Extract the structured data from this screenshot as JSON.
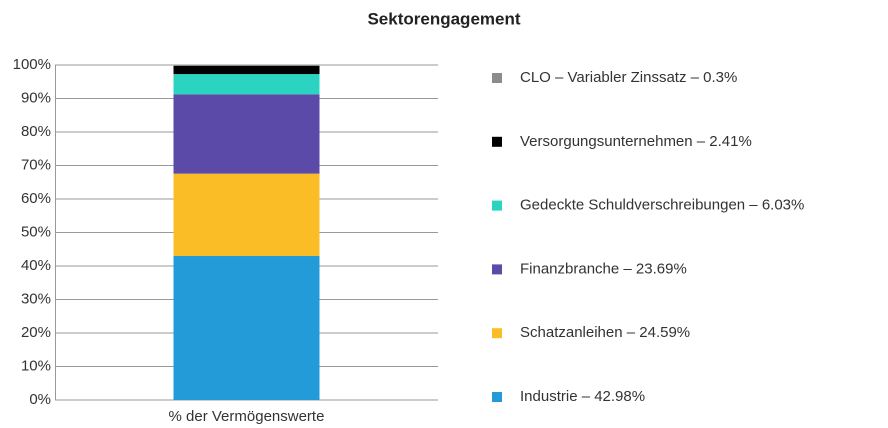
{
  "chart_data": {
    "type": "stacked_bar",
    "title": "Sektorengagement",
    "categories": [
      "% der Vermögenswerte"
    ],
    "series": [
      {
        "name": "Industrie – 42.98%",
        "color": "#229bd8",
        "values": [
          42.98
        ]
      },
      {
        "name": "Schatzanleihen – 24.59%",
        "color": "#fbbd26",
        "values": [
          24.59
        ]
      },
      {
        "name": "Finanzbranche – 23.69%",
        "color": "#5b4aa8",
        "values": [
          23.69
        ]
      },
      {
        "name": "Gedeckte Schuldverschreibungen – 6.03%",
        "color": "#2ad4c0",
        "values": [
          6.03
        ]
      },
      {
        "name": "Versorgungsunternehmen – 2.41%",
        "color": "#000000",
        "values": [
          2.41
        ]
      },
      {
        "name": "CLO – Variabler Zinssatz – 0.3%",
        "color": "#8c8c8c",
        "values": [
          0.3
        ]
      }
    ],
    "ylim": [
      0,
      100
    ],
    "yticks": [
      {
        "value": 0,
        "label": "0%"
      },
      {
        "value": 10,
        "label": "10%"
      },
      {
        "value": 20,
        "label": "20%"
      },
      {
        "value": 30,
        "label": "30%"
      },
      {
        "value": 40,
        "label": "40%"
      },
      {
        "value": 50,
        "label": "50%"
      },
      {
        "value": 60,
        "label": "60%"
      },
      {
        "value": 70,
        "label": "70%"
      },
      {
        "value": 80,
        "label": "80%"
      },
      {
        "value": 90,
        "label": "90%"
      },
      {
        "value": 100,
        "label": "100%"
      }
    ],
    "grid": true,
    "legend": "right"
  }
}
